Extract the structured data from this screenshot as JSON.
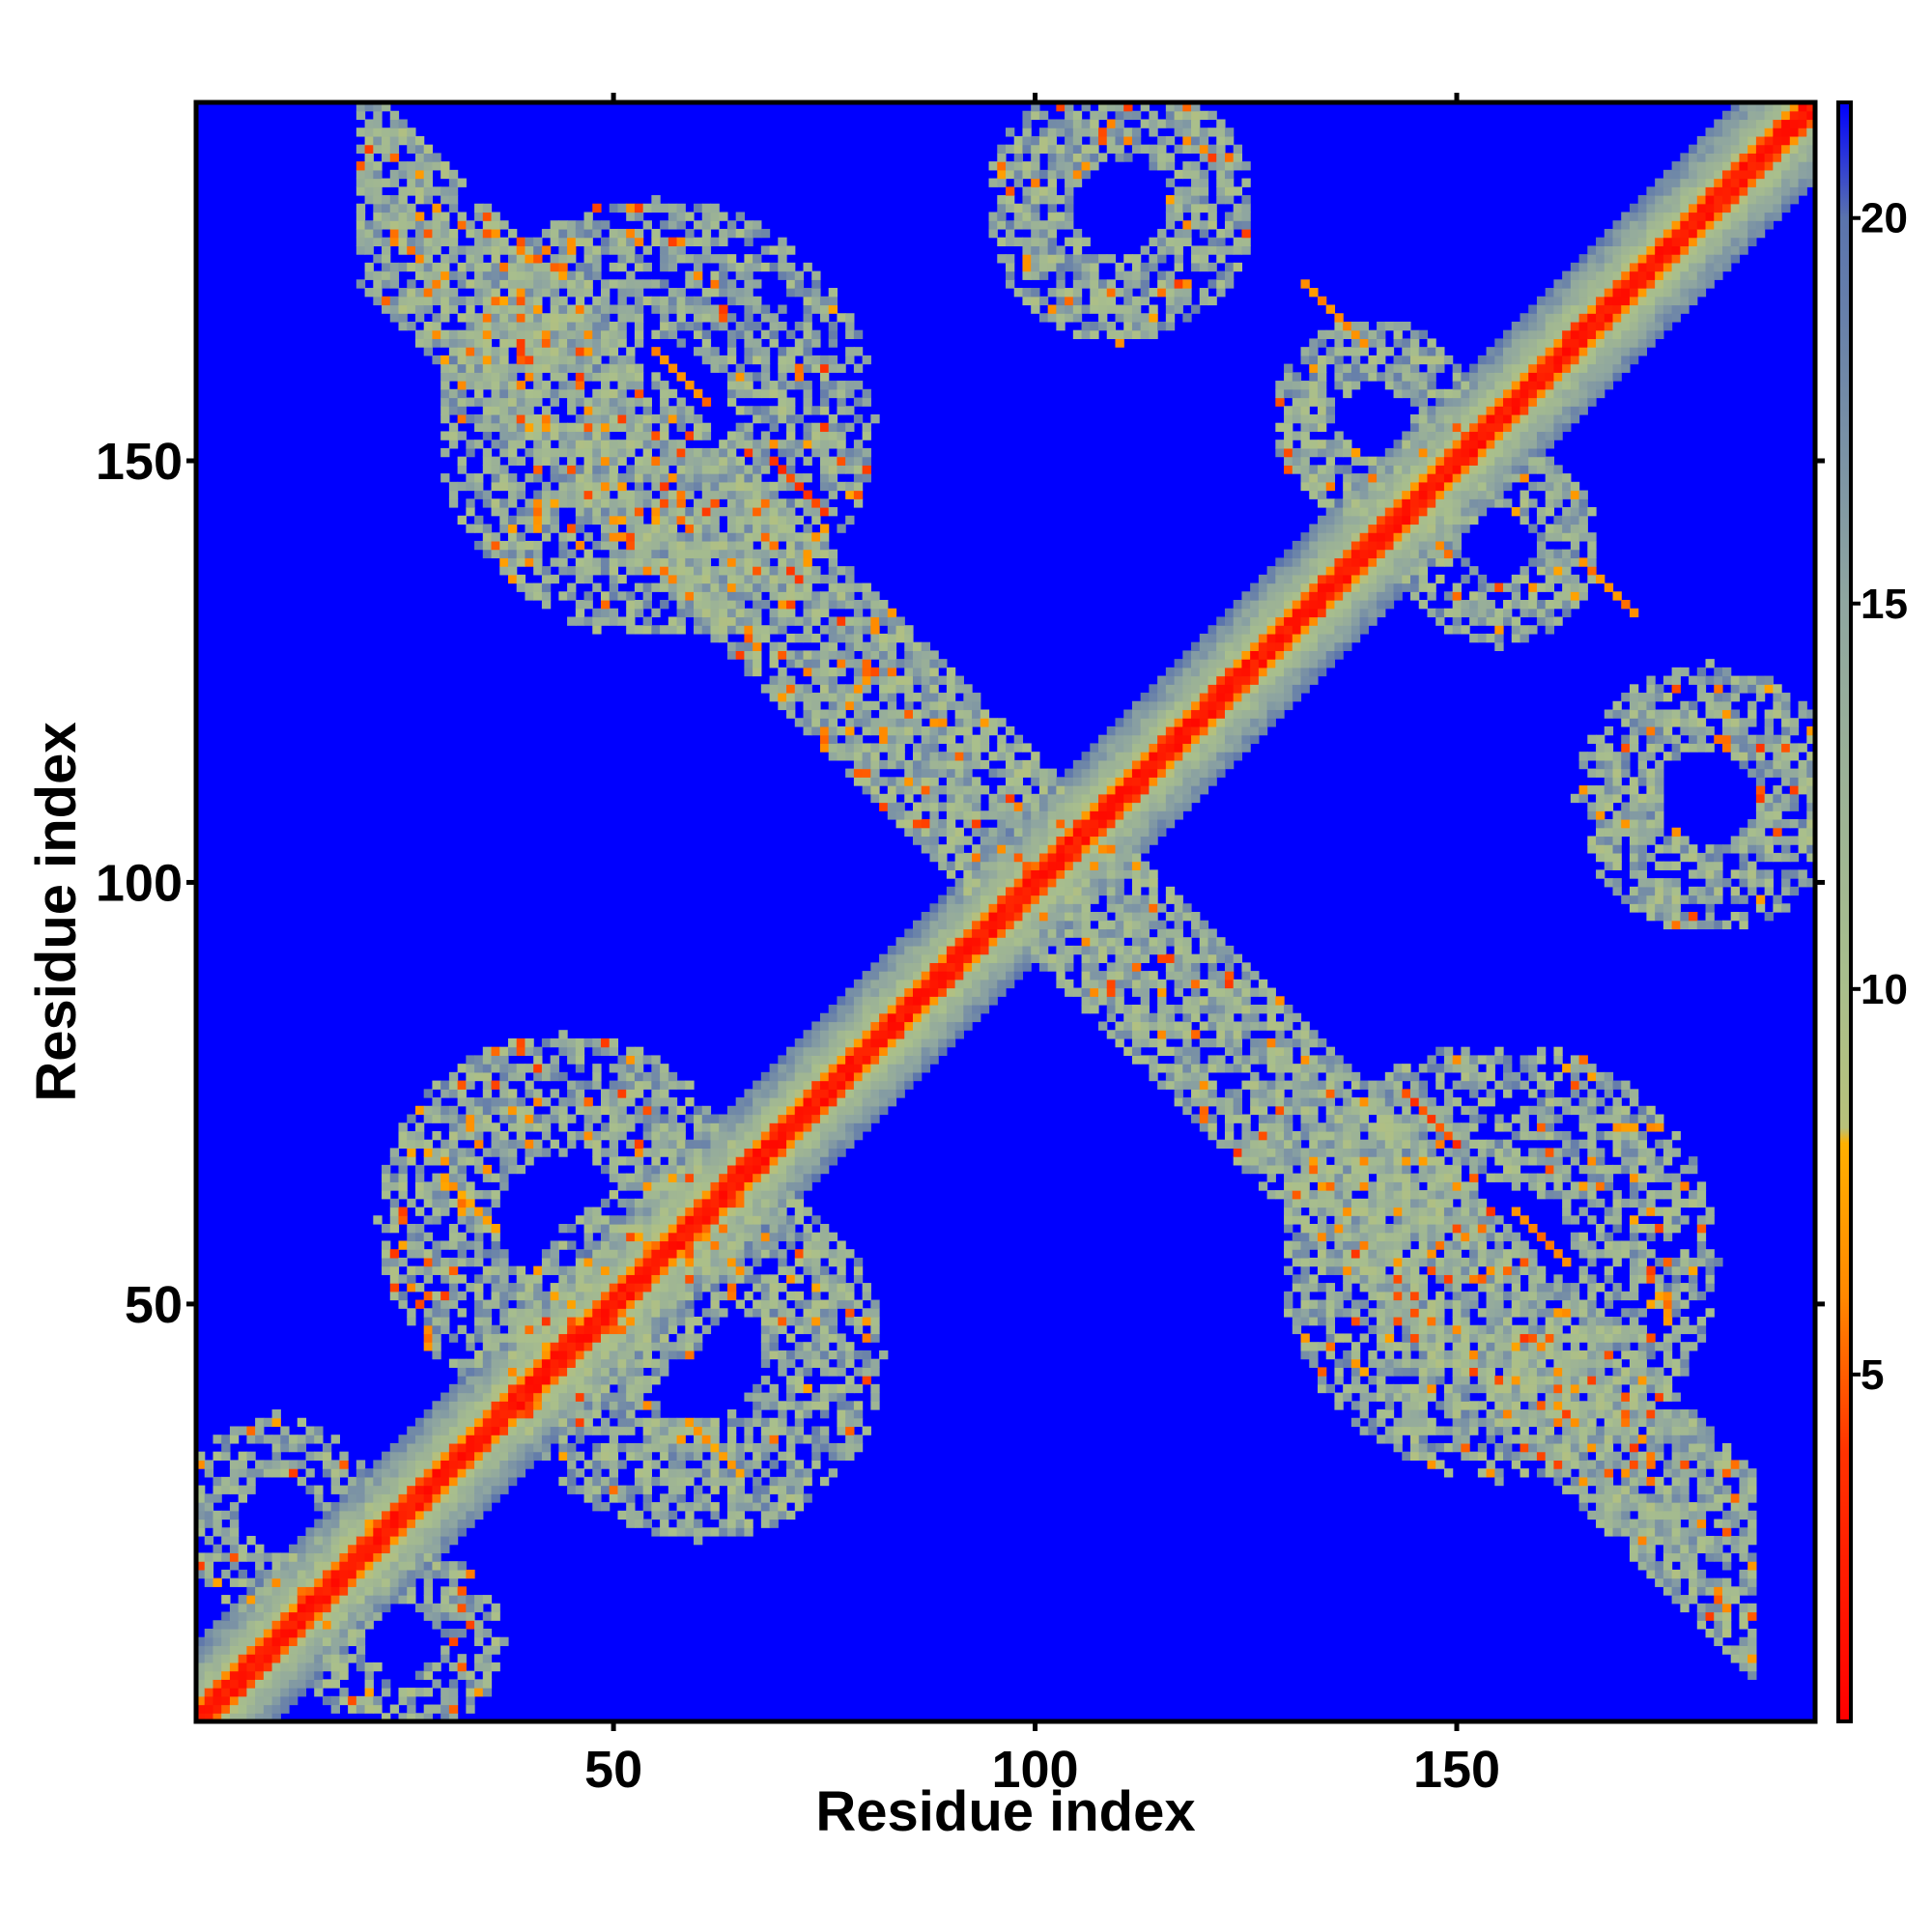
{
  "chart_data": {
    "type": "heatmap",
    "title": "",
    "xlabel": "Residue index",
    "ylabel": "Residue index",
    "n_residues": 192,
    "xlim": [
      1,
      192
    ],
    "ylim": [
      1,
      192
    ],
    "x_ticks": [
      50,
      100,
      150
    ],
    "y_ticks": [
      50,
      100,
      150
    ],
    "x_tick_labels": [
      "50",
      "100",
      "150"
    ],
    "y_tick_labels": [
      "50",
      "100",
      "150"
    ],
    "colorbar": {
      "range": [
        0.5,
        21.5
      ],
      "ticks": [
        5,
        10,
        15,
        20
      ],
      "tick_labels": [
        "5",
        "10",
        "15",
        "20"
      ],
      "stops": [
        {
          "value": 0.5,
          "color": "#ff0000"
        },
        {
          "value": 4,
          "color": "#ff3300"
        },
        {
          "value": 6,
          "color": "#ff8800"
        },
        {
          "value": 8,
          "color": "#ffb000"
        },
        {
          "value": 8.2,
          "color": "#b8c07a"
        },
        {
          "value": 10,
          "color": "#a9bf8c"
        },
        {
          "value": 15,
          "color": "#8fa6a0"
        },
        {
          "value": 20,
          "color": "#5a73ad"
        },
        {
          "value": 21.5,
          "color": "#0000ff"
        }
      ]
    },
    "background_color": "#0000ff",
    "structure": {
      "diagonal": {
        "core_width": 2.5,
        "band_width": 9
      },
      "anti_diagonal_ridge": {
        "from": [
          20,
          183
        ],
        "to": [
          185,
          20
        ],
        "width": 9
      },
      "contact_regions": [
        {
          "center": [
            44,
            60
          ],
          "radius": 22,
          "density": 0.78
        },
        {
          "center": [
            60,
            44
          ],
          "radius": 22,
          "density": 0.78
        },
        {
          "center": [
            46,
            43
          ],
          "radius": 9,
          "density": 0.5
        },
        {
          "center": [
            55,
            155
          ],
          "radius": 26,
          "density": 0.72
        },
        {
          "center": [
            155,
            55
          ],
          "radius": 26,
          "density": 0.72
        },
        {
          "center": [
            110,
            180
          ],
          "radius": 16,
          "density": 0.8
        },
        {
          "center": [
            180,
            110
          ],
          "radius": 16,
          "density": 0.8
        },
        {
          "center": [
            155,
            140
          ],
          "radius": 12,
          "density": 0.8
        },
        {
          "center": [
            140,
            155
          ],
          "radius": 12,
          "density": 0.8
        },
        {
          "center": [
            25,
            10
          ],
          "radius": 12,
          "density": 0.7
        },
        {
          "center": [
            10,
            25
          ],
          "radius": 12,
          "density": 0.7
        }
      ],
      "hot_spots": [
        {
          "center": [
            58,
            160
          ],
          "value": 5
        },
        {
          "center": [
            160,
            58
          ],
          "value": 5
        },
        {
          "center": [
            135,
            168
          ],
          "value": 5
        },
        {
          "center": [
            168,
            135
          ],
          "value": 5
        },
        {
          "center": [
            33,
            62
          ],
          "value": 6
        },
        {
          "center": [
            62,
            33
          ],
          "value": 6
        },
        {
          "center": [
            147,
            72
          ],
          "value": 3
        },
        {
          "center": [
            72,
            147
          ],
          "value": 3
        }
      ]
    }
  }
}
